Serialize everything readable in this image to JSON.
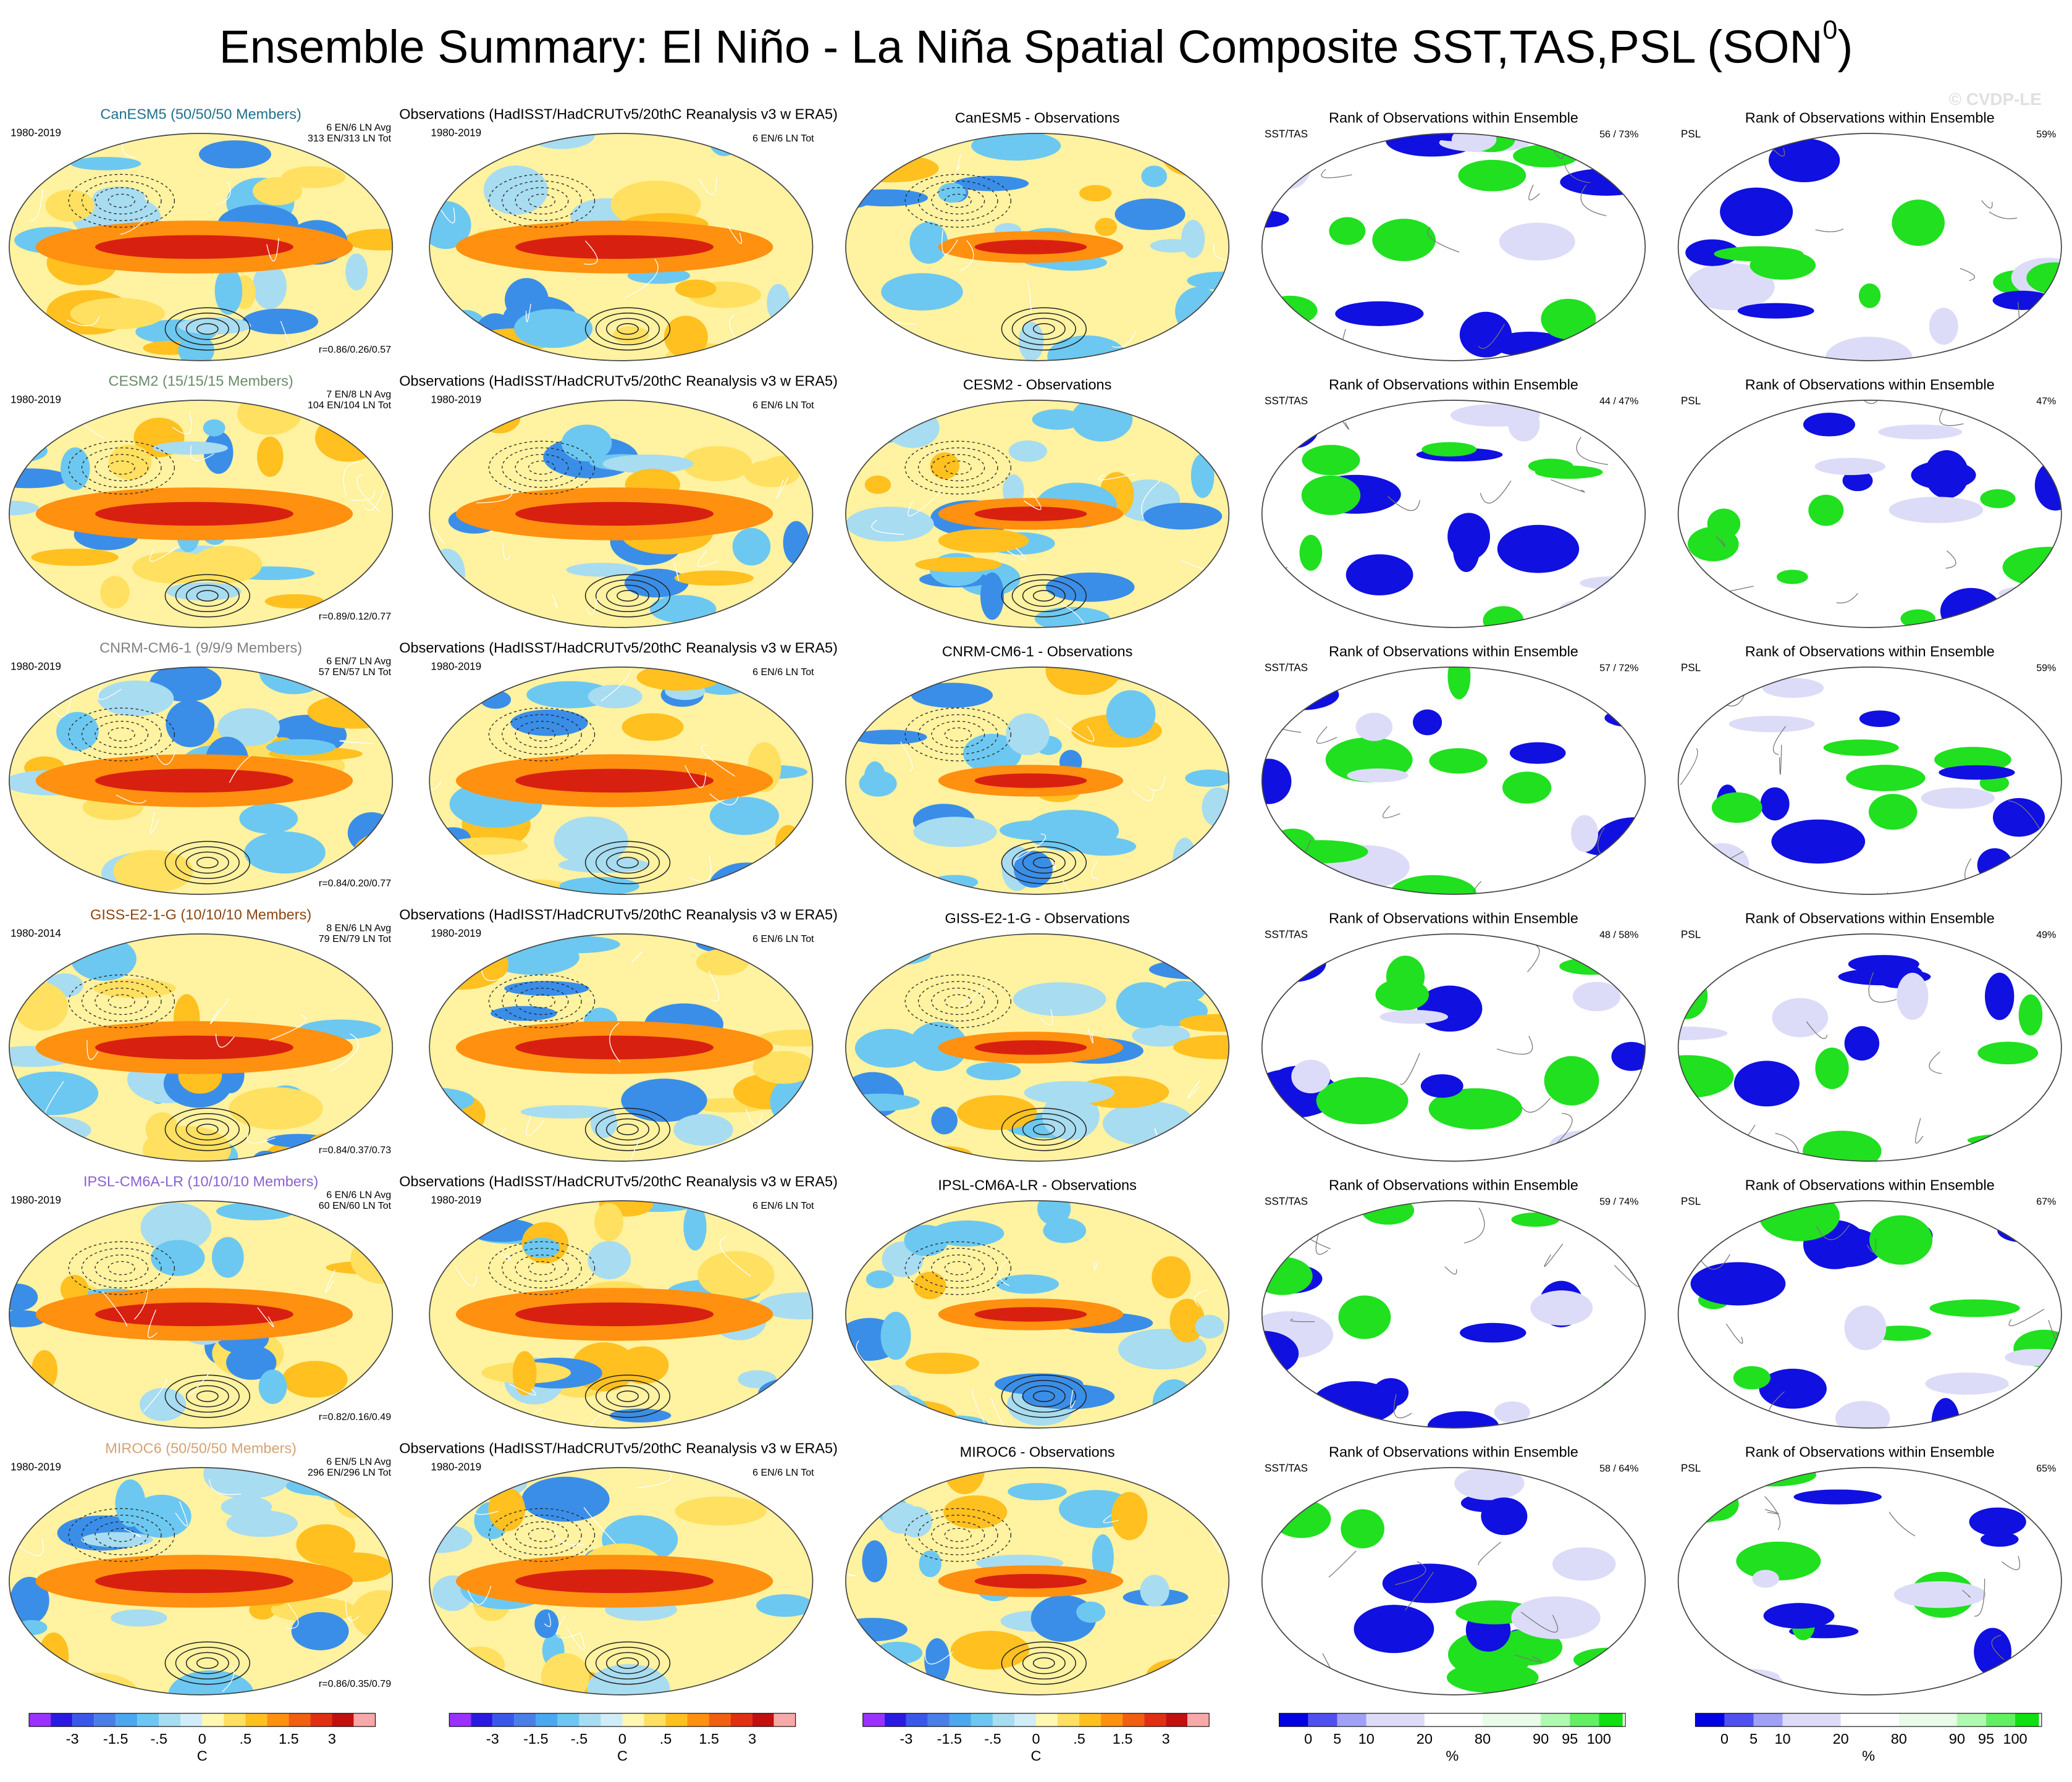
{
  "title": "Ensemble Summary: El Niño - La Niña Spatial Composite SST,TAS,PSL (SON",
  "title_superscript": "0",
  "title_end": ")",
  "watermark": "© CVDP-LE",
  "rows": [
    {
      "model_title": "CanESM5 (50/50/50 Members)",
      "model_color": "#1f6f8b",
      "model_years": "1980-2019",
      "model_counts": [
        "6 EN/6 LN Avg",
        "313 EN/313 LN Tot"
      ],
      "model_stats": "r=0.86/0.26/0.57",
      "obs_title": "Observations (HadISST/HadCRUTv5/20thC Reanalysis v3 w ERA5)",
      "obs_years": "1980-2019",
      "obs_counts": "6 EN/6 LN Tot",
      "diff_title": "CanESM5 - Observations",
      "rank_sst_title": "Rank of Observations within Ensemble",
      "rank_sst_label": "SST/TAS",
      "rank_sst_pct": "56 /  73%",
      "rank_psl_title": "Rank of Observations within Ensemble",
      "rank_psl_label": "PSL",
      "rank_psl_pct": "59%"
    },
    {
      "model_title": "CESM2 (15/15/15 Members)",
      "model_color": "#6a8a6a",
      "model_years": "1980-2019",
      "model_counts": [
        "7 EN/8 LN Avg",
        "104 EN/104 LN Tot"
      ],
      "model_stats": "r=0.89/0.12/0.77",
      "obs_title": "Observations (HadISST/HadCRUTv5/20thC Reanalysis v3 w ERA5)",
      "obs_years": "1980-2019",
      "obs_counts": "6 EN/6 LN Tot",
      "diff_title": "CESM2 - Observations",
      "rank_sst_title": "Rank of Observations within Ensemble",
      "rank_sst_label": "SST/TAS",
      "rank_sst_pct": "44 /  47%",
      "rank_psl_title": "Rank of Observations within Ensemble",
      "rank_psl_label": "PSL",
      "rank_psl_pct": "47%"
    },
    {
      "model_title": "CNRM-CM6-1 (9/9/9 Members)",
      "model_color": "#808080",
      "model_years": "1980-2019",
      "model_counts": [
        "6 EN/7 LN Avg",
        "57 EN/57 LN Tot"
      ],
      "model_stats": "r=0.84/0.20/0.77",
      "obs_title": "Observations (HadISST/HadCRUTv5/20thC Reanalysis v3 w ERA5)",
      "obs_years": "1980-2019",
      "obs_counts": "6 EN/6 LN Tot",
      "diff_title": "CNRM-CM6-1 - Observations",
      "rank_sst_title": "Rank of Observations within Ensemble",
      "rank_sst_label": "SST/TAS",
      "rank_sst_pct": "57 /  72%",
      "rank_psl_title": "Rank of Observations within Ensemble",
      "rank_psl_label": "PSL",
      "rank_psl_pct": "59%"
    },
    {
      "model_title": "GISS-E2-1-G (10/10/10 Members)",
      "model_color": "#8b4513",
      "model_years": "1980-2014",
      "model_counts": [
        "8 EN/6 LN Avg",
        "79 EN/79 LN Tot"
      ],
      "model_stats": "r=0.84/0.37/0.73",
      "obs_title": "Observations (HadISST/HadCRUTv5/20thC Reanalysis v3 w ERA5)",
      "obs_years": "1980-2019",
      "obs_counts": "6 EN/6 LN Tot",
      "diff_title": "GISS-E2-1-G - Observations",
      "rank_sst_title": "Rank of Observations within Ensemble",
      "rank_sst_label": "SST/TAS",
      "rank_sst_pct": "48 /  58%",
      "rank_psl_title": "Rank of Observations within Ensemble",
      "rank_psl_label": "PSL",
      "rank_psl_pct": "49%"
    },
    {
      "model_title": "IPSL-CM6A-LR (10/10/10 Members)",
      "model_color": "#8a5fd0",
      "model_years": "1980-2019",
      "model_counts": [
        "6 EN/6 LN Avg",
        "60 EN/60 LN Tot"
      ],
      "model_stats": "r=0.82/0.16/0.49",
      "obs_title": "Observations (HadISST/HadCRUTv5/20thC Reanalysis v3 w ERA5)",
      "obs_years": "1980-2019",
      "obs_counts": "6 EN/6 LN Tot",
      "diff_title": "IPSL-CM6A-LR - Observations",
      "rank_sst_title": "Rank of Observations within Ensemble",
      "rank_sst_label": "SST/TAS",
      "rank_sst_pct": "59 /  74%",
      "rank_psl_title": "Rank of Observations within Ensemble",
      "rank_psl_label": "PSL",
      "rank_psl_pct": "67%"
    },
    {
      "model_title": "MIROC6 (50/50/50 Members)",
      "model_color": "#d4a373",
      "model_years": "1980-2019",
      "model_counts": [
        "6 EN/5 LN Avg",
        "296 EN/296 LN Tot"
      ],
      "model_stats": "r=0.86/0.35/0.79",
      "obs_title": "Observations (HadISST/HadCRUTv5/20thC Reanalysis v3 w ERA5)",
      "obs_years": "1980-2019",
      "obs_counts": "6 EN/6 LN Tot",
      "diff_title": "MIROC6 - Observations",
      "rank_sst_title": "Rank of Observations within Ensemble",
      "rank_sst_label": "SST/TAS",
      "rank_sst_pct": "58 /  64%",
      "rank_psl_title": "Rank of Observations within Ensemble",
      "rank_psl_label": "PSL",
      "rank_psl_pct": "65%"
    }
  ],
  "colorbars": [
    {
      "kind": "temperature",
      "labels": [
        "-3",
        "-1.5",
        "-.5",
        "0",
        ".5",
        "1.5",
        "3"
      ],
      "unit": "C"
    },
    {
      "kind": "temperature",
      "labels": [
        "-3",
        "-1.5",
        "-.5",
        "0",
        ".5",
        "1.5",
        "3"
      ],
      "unit": "C"
    },
    {
      "kind": "temperature",
      "labels": [
        "-3",
        "-1.5",
        "-.5",
        "0",
        ".5",
        "1.5",
        "3"
      ],
      "unit": "C"
    },
    {
      "kind": "rank",
      "labels": [
        "0",
        "5",
        "10",
        "20",
        "80",
        "90",
        "95",
        "100"
      ],
      "unit": "%"
    },
    {
      "kind": "rank",
      "labels": [
        "0",
        "5",
        "10",
        "20",
        "80",
        "90",
        "95",
        "100"
      ],
      "unit": "%"
    }
  ]
}
